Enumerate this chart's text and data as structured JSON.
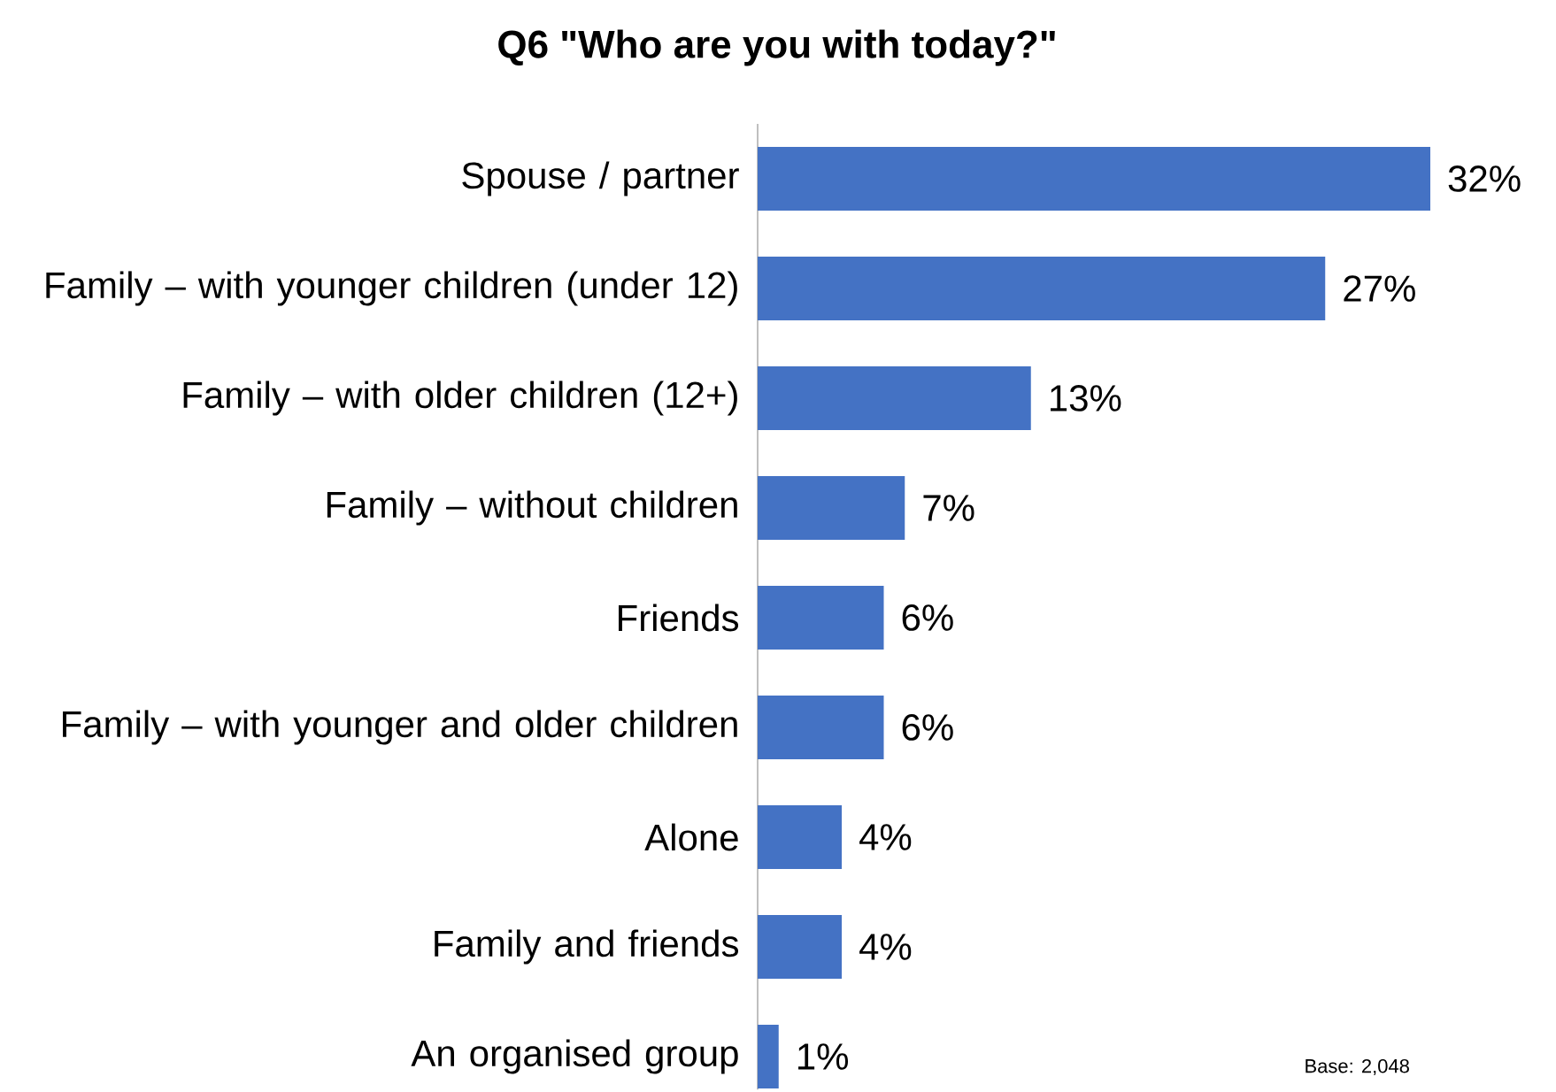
{
  "chart_data": {
    "type": "bar",
    "orientation": "horizontal",
    "title": "Q6 \"Who are you with today?\"",
    "categories": [
      "Spouse / partner",
      "Family – with younger children (under 12)",
      "Family – with older children (12+)",
      "Family – without children",
      "Friends",
      "Family – with younger and older children",
      "Alone",
      "Family and friends",
      "An organised group"
    ],
    "values": [
      32,
      27,
      13,
      7,
      6,
      6,
      4,
      4,
      1
    ],
    "value_labels": [
      "32%",
      "27%",
      "13%",
      "7%",
      "6%",
      "6%",
      "4%",
      "4%",
      "1%"
    ],
    "color": "#4472c4",
    "annotations": [
      "Base: 2,048"
    ]
  }
}
